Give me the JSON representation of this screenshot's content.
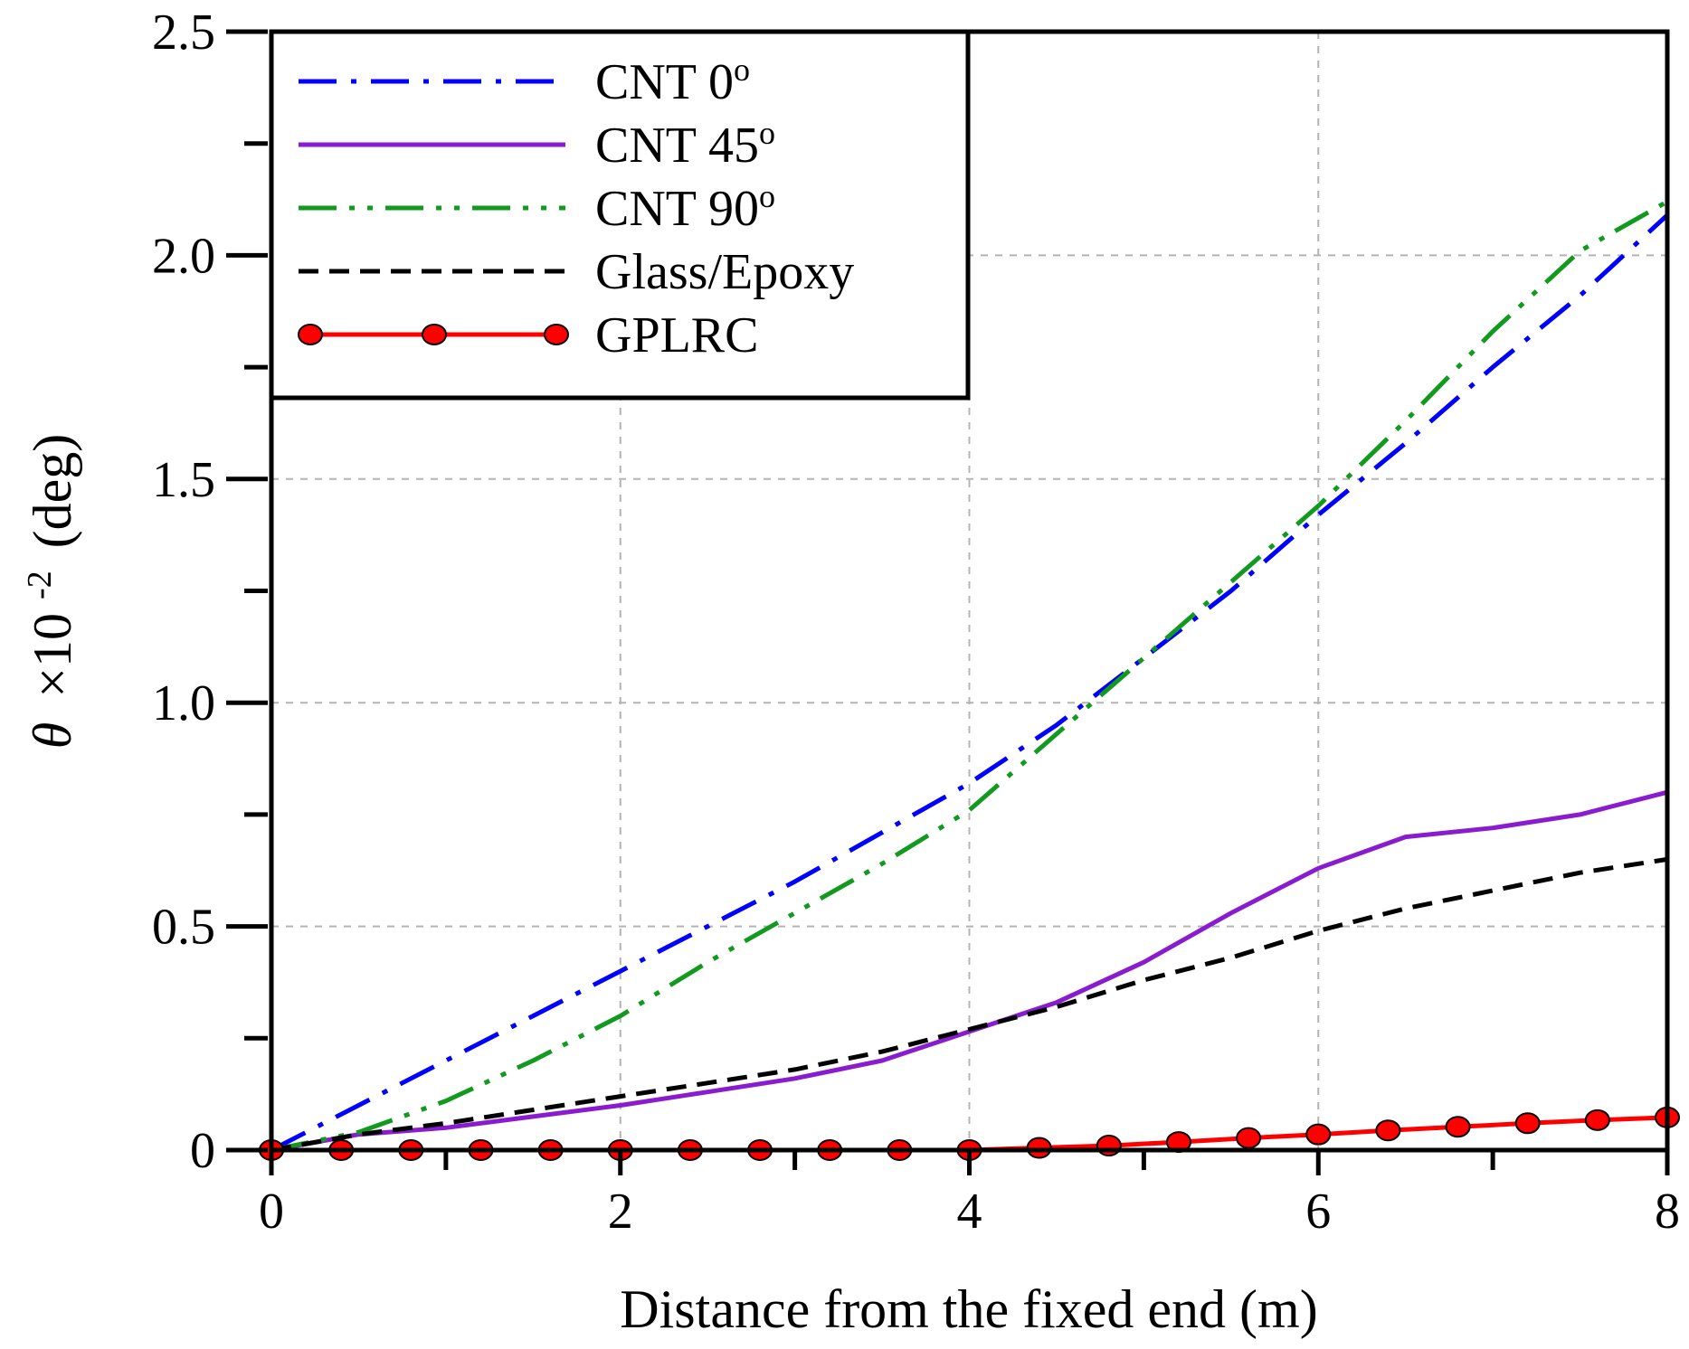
{
  "chart_data": {
    "type": "line",
    "title": "",
    "xlabel": "Distance from the fixed end (m)",
    "ylabel": {
      "symbol": "θ",
      "factor_base": "×10",
      "factor_exponent": "-2",
      "unit": "(deg)"
    },
    "xlim": [
      0,
      8
    ],
    "ylim": [
      0,
      2.5
    ],
    "x_ticks": [
      0,
      2,
      4,
      6,
      8
    ],
    "x_tick_labels": [
      "0",
      "2",
      "4",
      "6",
      "8"
    ],
    "y_ticks": [
      0,
      0.5,
      1.0,
      1.5,
      2.0,
      2.5
    ],
    "y_tick_labels": [
      "0",
      "0.5",
      "1.0",
      "1.5",
      "2.0",
      "2.5"
    ],
    "grid": true,
    "legend_position": "top-left",
    "series": [
      {
        "name": "CNT 0º",
        "label_text": "CNT 0",
        "label_sup": "o",
        "color": "#0000ff",
        "style": "dash-dot",
        "markers": false,
        "x": [
          0,
          0.5,
          1,
          1.5,
          2,
          2.5,
          3,
          3.5,
          4,
          4.5,
          5,
          5.5,
          6,
          6.5,
          7,
          7.5,
          8
        ],
        "y": [
          0,
          0.1,
          0.2,
          0.3,
          0.4,
          0.5,
          0.6,
          0.71,
          0.82,
          0.95,
          1.1,
          1.25,
          1.42,
          1.58,
          1.75,
          1.91,
          2.09
        ]
      },
      {
        "name": "CNT 45º",
        "label_text": "CNT 45",
        "label_sup": "o",
        "color": "#8a1ccf",
        "style": "solid",
        "markers": false,
        "x": [
          0,
          0.5,
          1,
          1.5,
          2,
          2.5,
          3,
          3.5,
          4,
          4.5,
          5,
          5.5,
          6,
          6.5,
          7,
          7.5,
          8
        ],
        "y": [
          0,
          0.035,
          0.05,
          0.075,
          0.1,
          0.13,
          0.16,
          0.2,
          0.265,
          0.33,
          0.42,
          0.53,
          0.63,
          0.7,
          0.72,
          0.75,
          0.8
        ]
      },
      {
        "name": "CNT 90º",
        "label_text": "CNT 90",
        "label_sup": "o",
        "color": "#129a1f",
        "style": "dash-dot-dot",
        "markers": false,
        "x": [
          0,
          0.5,
          1,
          1.5,
          2,
          2.5,
          3,
          3.5,
          4,
          4.5,
          5,
          5.5,
          6,
          6.5,
          7,
          7.5,
          8
        ],
        "y": [
          0,
          0.04,
          0.11,
          0.2,
          0.3,
          0.42,
          0.53,
          0.64,
          0.76,
          0.93,
          1.1,
          1.27,
          1.44,
          1.63,
          1.83,
          2.01,
          2.12
        ]
      },
      {
        "name": "Glass/Epoxy",
        "label_text": "Glass/Epoxy",
        "label_sup": "",
        "color": "#000000",
        "style": "dashed",
        "markers": false,
        "x": [
          0,
          0.5,
          1,
          1.5,
          2,
          2.5,
          3,
          3.5,
          4,
          4.5,
          5,
          5.5,
          6,
          6.5,
          7,
          7.5,
          8
        ],
        "y": [
          0,
          0.035,
          0.06,
          0.09,
          0.12,
          0.15,
          0.18,
          0.22,
          0.27,
          0.32,
          0.38,
          0.43,
          0.49,
          0.54,
          0.58,
          0.62,
          0.65
        ]
      },
      {
        "name": "GPLRC",
        "label_text": "GPLRC",
        "label_sup": "",
        "color": "#ff0000",
        "marker_fill": "#ff0000",
        "marker_stroke": "#000000",
        "style": "solid",
        "markers": true,
        "x": [
          0,
          0.4,
          0.8,
          1.2,
          1.6,
          2.0,
          2.4,
          2.8,
          3.2,
          3.6,
          4.0,
          4.4,
          4.8,
          5.2,
          5.6,
          6.0,
          6.4,
          6.8,
          7.2,
          7.6,
          8.0
        ],
        "y": [
          0,
          0,
          0,
          0,
          0,
          0,
          0,
          0,
          0,
          0,
          0,
          0.005,
          0.01,
          0.018,
          0.027,
          0.035,
          0.044,
          0.052,
          0.06,
          0.067,
          0.073
        ]
      }
    ]
  }
}
